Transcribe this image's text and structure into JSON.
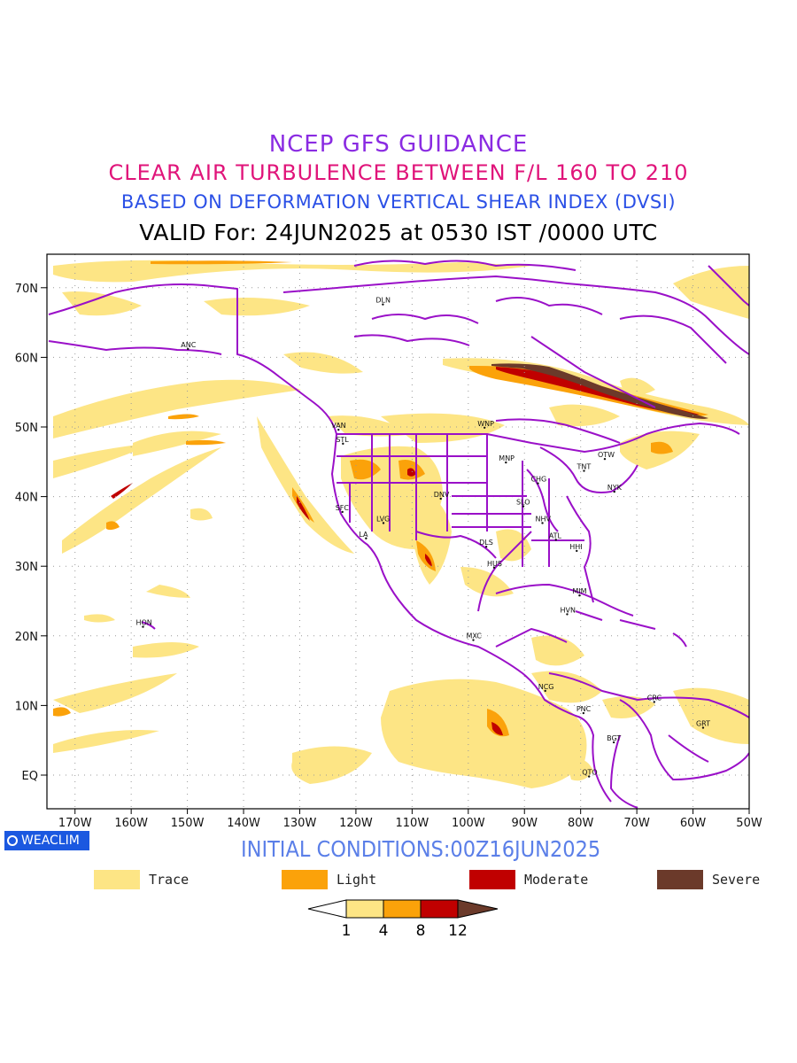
{
  "header": {
    "line1": "NCEP GFS GUIDANCE",
    "line2": "CLEAR AIR TURBULENCE BETWEEN F/L 160 TO 210",
    "line3": "BASED ON DEFORMATION VERTICAL SHEAR INDEX (DVSI)",
    "line4": "VALID For: 24JUN2025 at 0530 IST /0000 UTC"
  },
  "colors": {
    "trace": "#fde585",
    "light": "#fba20a",
    "moderate": "#c00000",
    "severe": "#6b3a2a",
    "border": "#9a10c8",
    "title1": "#8a2be2",
    "title2": "#e0147a",
    "title3": "#2b50e6"
  },
  "map": {
    "lat_labels": [
      "70N",
      "60N",
      "50N",
      "40N",
      "30N",
      "20N",
      "10N",
      "EQ"
    ],
    "lon_labels": [
      "170W",
      "160W",
      "150W",
      "140W",
      "130W",
      "120W",
      "110W",
      "100W",
      "90W",
      "80W",
      "70W",
      "60W",
      "50W"
    ],
    "cities": [
      {
        "name": "ANC",
        "lon": -149.9,
        "lat": 61.2
      },
      {
        "name": "DLN",
        "lon": -115.2,
        "lat": 67.6
      },
      {
        "name": "VAN",
        "lon": -123.1,
        "lat": 49.6
      },
      {
        "name": "STL",
        "lon": -122.3,
        "lat": 47.6
      },
      {
        "name": "WNP",
        "lon": -97.1,
        "lat": 49.9
      },
      {
        "name": "OTW",
        "lon": -75.7,
        "lat": 45.4
      },
      {
        "name": "MNP",
        "lon": -93.3,
        "lat": 44.9
      },
      {
        "name": "TNT",
        "lon": -79.4,
        "lat": 43.7
      },
      {
        "name": "CHG",
        "lon": -87.6,
        "lat": 41.9
      },
      {
        "name": "NYK",
        "lon": -74.0,
        "lat": 40.7
      },
      {
        "name": "DNV",
        "lon": -104.9,
        "lat": 39.7
      },
      {
        "name": "SFC",
        "lon": -122.4,
        "lat": 37.8
      },
      {
        "name": "SLO",
        "lon": -90.2,
        "lat": 38.6
      },
      {
        "name": "LVG",
        "lon": -115.1,
        "lat": 36.2
      },
      {
        "name": "NHV",
        "lon": -86.8,
        "lat": 36.2
      },
      {
        "name": "LA",
        "lon": -118.2,
        "lat": 34.0
      },
      {
        "name": "ATL",
        "lon": -84.4,
        "lat": 33.8
      },
      {
        "name": "DLS",
        "lon": -96.8,
        "lat": 32.8
      },
      {
        "name": "HHI",
        "lon": -80.7,
        "lat": 32.2
      },
      {
        "name": "HUS",
        "lon": -95.4,
        "lat": 29.8
      },
      {
        "name": "MIM",
        "lon": -80.2,
        "lat": 25.8
      },
      {
        "name": "HVN",
        "lon": -82.4,
        "lat": 23.1
      },
      {
        "name": "HON",
        "lon": -157.9,
        "lat": 21.3
      },
      {
        "name": "MXC",
        "lon": -99.1,
        "lat": 19.4
      },
      {
        "name": "NCG",
        "lon": -86.3,
        "lat": 12.1
      },
      {
        "name": "CRC",
        "lon": -66.9,
        "lat": 10.5
      },
      {
        "name": "PNC",
        "lon": -79.5,
        "lat": 8.9
      },
      {
        "name": "GRT",
        "lon": -58.2,
        "lat": 6.8
      },
      {
        "name": "BGT",
        "lon": -74.1,
        "lat": 4.7
      },
      {
        "name": "QTO",
        "lon": -78.5,
        "lat": -0.2
      }
    ]
  },
  "footer": {
    "badge": "WEACLIM",
    "initial": "INITIAL CONDITIONS:00Z16JUN2025"
  },
  "legend": [
    {
      "label": "Trace",
      "color": "#fde585"
    },
    {
      "label": "Light",
      "color": "#fba20a"
    },
    {
      "label": "Moderate",
      "color": "#c00000"
    },
    {
      "label": "Severe",
      "color": "#6b3a2a"
    }
  ],
  "colorbar": {
    "ticks": [
      "1",
      "4",
      "8",
      "12"
    ],
    "colors": [
      "#ffffff",
      "#fde585",
      "#fba20a",
      "#c00000",
      "#6b3a2a"
    ]
  }
}
